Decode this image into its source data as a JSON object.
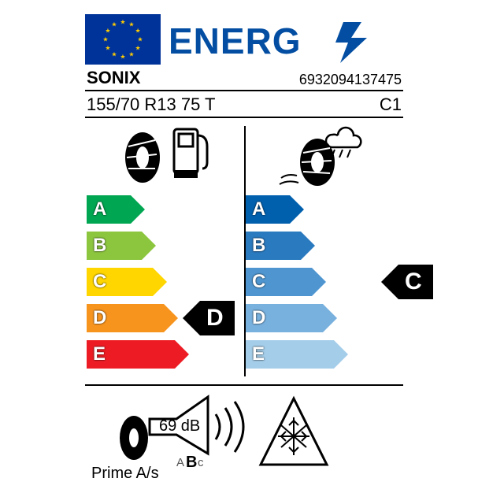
{
  "header": {
    "energy_word": "ENERG",
    "flag_color": "#003399",
    "star_color": "#ffcc00",
    "text_color": "#034ea2"
  },
  "brand": "SONIX",
  "ean": "6932094137475",
  "tyre_size": "155/70 R13 75 T",
  "tyre_class": "C1",
  "fuel": {
    "grades": [
      "A",
      "B",
      "C",
      "D",
      "E"
    ],
    "colors": [
      "#00a651",
      "#8cc63f",
      "#ffd600",
      "#f7941e",
      "#ed1c24"
    ],
    "widths": [
      56,
      70,
      84,
      98,
      112
    ],
    "rating": "D",
    "rating_index": 3
  },
  "wet": {
    "grades": [
      "A",
      "B",
      "C",
      "D",
      "E"
    ],
    "colors": [
      "#0060ae",
      "#2a7ac0",
      "#4f96d1",
      "#78b0de",
      "#a4cde9"
    ],
    "widths": [
      56,
      70,
      84,
      98,
      112
    ],
    "rating": "C",
    "rating_index": 2
  },
  "noise": {
    "db_value": "69 dB",
    "class_a": "A",
    "class_b": "B",
    "class_c": "c"
  },
  "model": "Prime A/s"
}
